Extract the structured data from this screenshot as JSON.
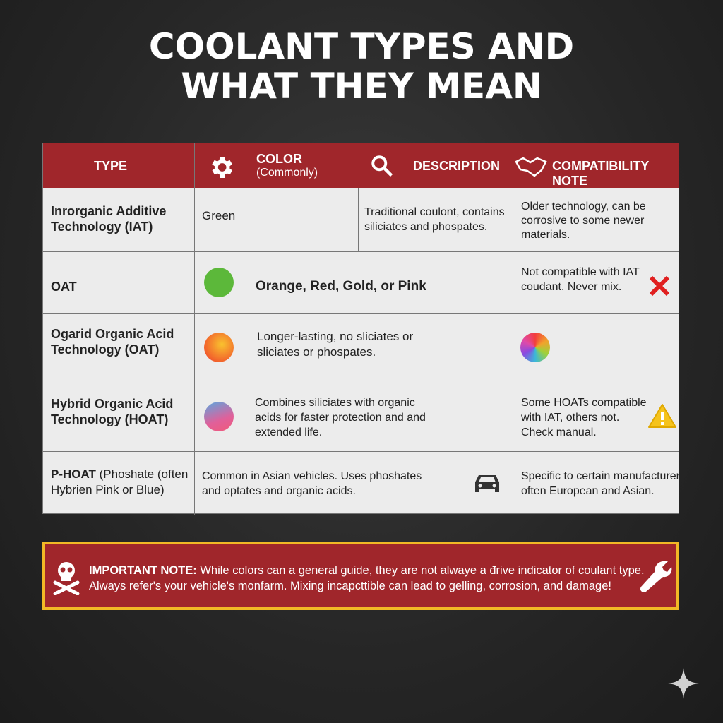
{
  "title": [
    "COOLANT TYPES AND",
    "WHAT THEY MEAN"
  ],
  "header": {
    "type": "TYPE",
    "color": "COLOR",
    "color_sub": "(Commonly)",
    "description": "DESCRIPTION",
    "compat": "COMPATIBILITY NOTE"
  },
  "rows": [
    {
      "type": "Inrorganic Additive Technology (IAT)",
      "color": "Green",
      "description": "Traditional coulont, contains siliciates and phospates.",
      "compat": "Older technology, can be corrosive to some newer materials."
    },
    {
      "type": "OAT",
      "color_swatch": "#5cb83a",
      "color": "Orange, Red, Gold, or Pink",
      "compat": "Not compatible with IAT coudant. Never mix.",
      "compat_icon": "x-icon"
    },
    {
      "type": "Ogarid Organic Acid Technology (OAT)",
      "color_swatch": "orange-red gradient",
      "description": "Longer-lasting, no sliciates or sliciates or phospates.",
      "compat_icon": "rainbow-circle"
    },
    {
      "type": "Hybrid Organic Acid Technology (HOAT)",
      "color_swatch": "pink-blue gradient",
      "description": "Combines siliciates with organic acids for faster protection and and extended life.",
      "compat": "Some HOATs compatible with IAT, others not. Check manual.",
      "compat_icon": "warning-icon"
    },
    {
      "type_bold": "P-HOAT",
      "type_rest": " (Phoshate (often Hybrien Pink or Blue)",
      "description": "Common in Asian vehicles. Uses phoshates and optates and organic acids.",
      "desc_icon": "car-icon",
      "compat": "Specific to certain manufacturers often European and Asian."
    }
  ],
  "note": {
    "label": "IMPORTANT NOTE:",
    "line1": " While colors can a general guide, they are not alwaye a đrive indicator of coulant type.",
    "line2": "Always refer's your vehicle's monfarm. Mixing incapcttible can lead to gelling, corrosion, and damage!"
  },
  "colors": {
    "header": "#a0262b",
    "note_border": "#f2b826",
    "background": "#2a2a2a"
  }
}
